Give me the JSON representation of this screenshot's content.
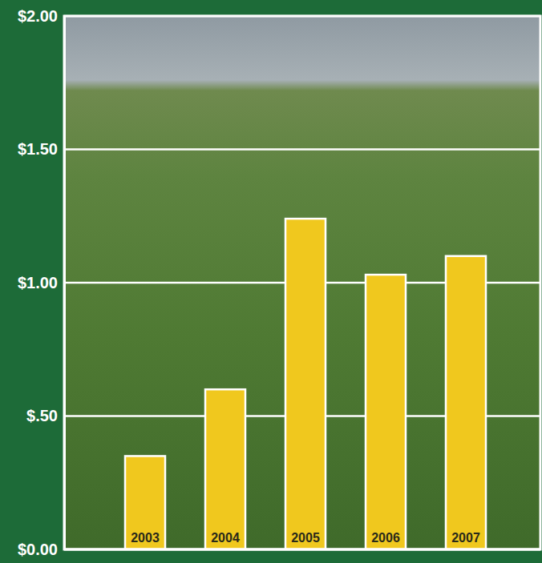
{
  "chart_data": {
    "type": "bar",
    "categories": [
      "2003",
      "2004",
      "2005",
      "2006",
      "2007"
    ],
    "values": [
      0.35,
      0.6,
      1.24,
      1.03,
      1.1
    ],
    "color": "#f0c81e",
    "ylim": [
      0,
      2
    ],
    "yticks": [
      {
        "value": 0,
        "label": "$0.00"
      },
      {
        "value": 0.5,
        "label": "$.50"
      },
      {
        "value": 1,
        "label": "$1.00"
      },
      {
        "value": 1.5,
        "label": "$1.50"
      },
      {
        "value": 2,
        "label": "$2.00"
      }
    ],
    "grid": true
  }
}
